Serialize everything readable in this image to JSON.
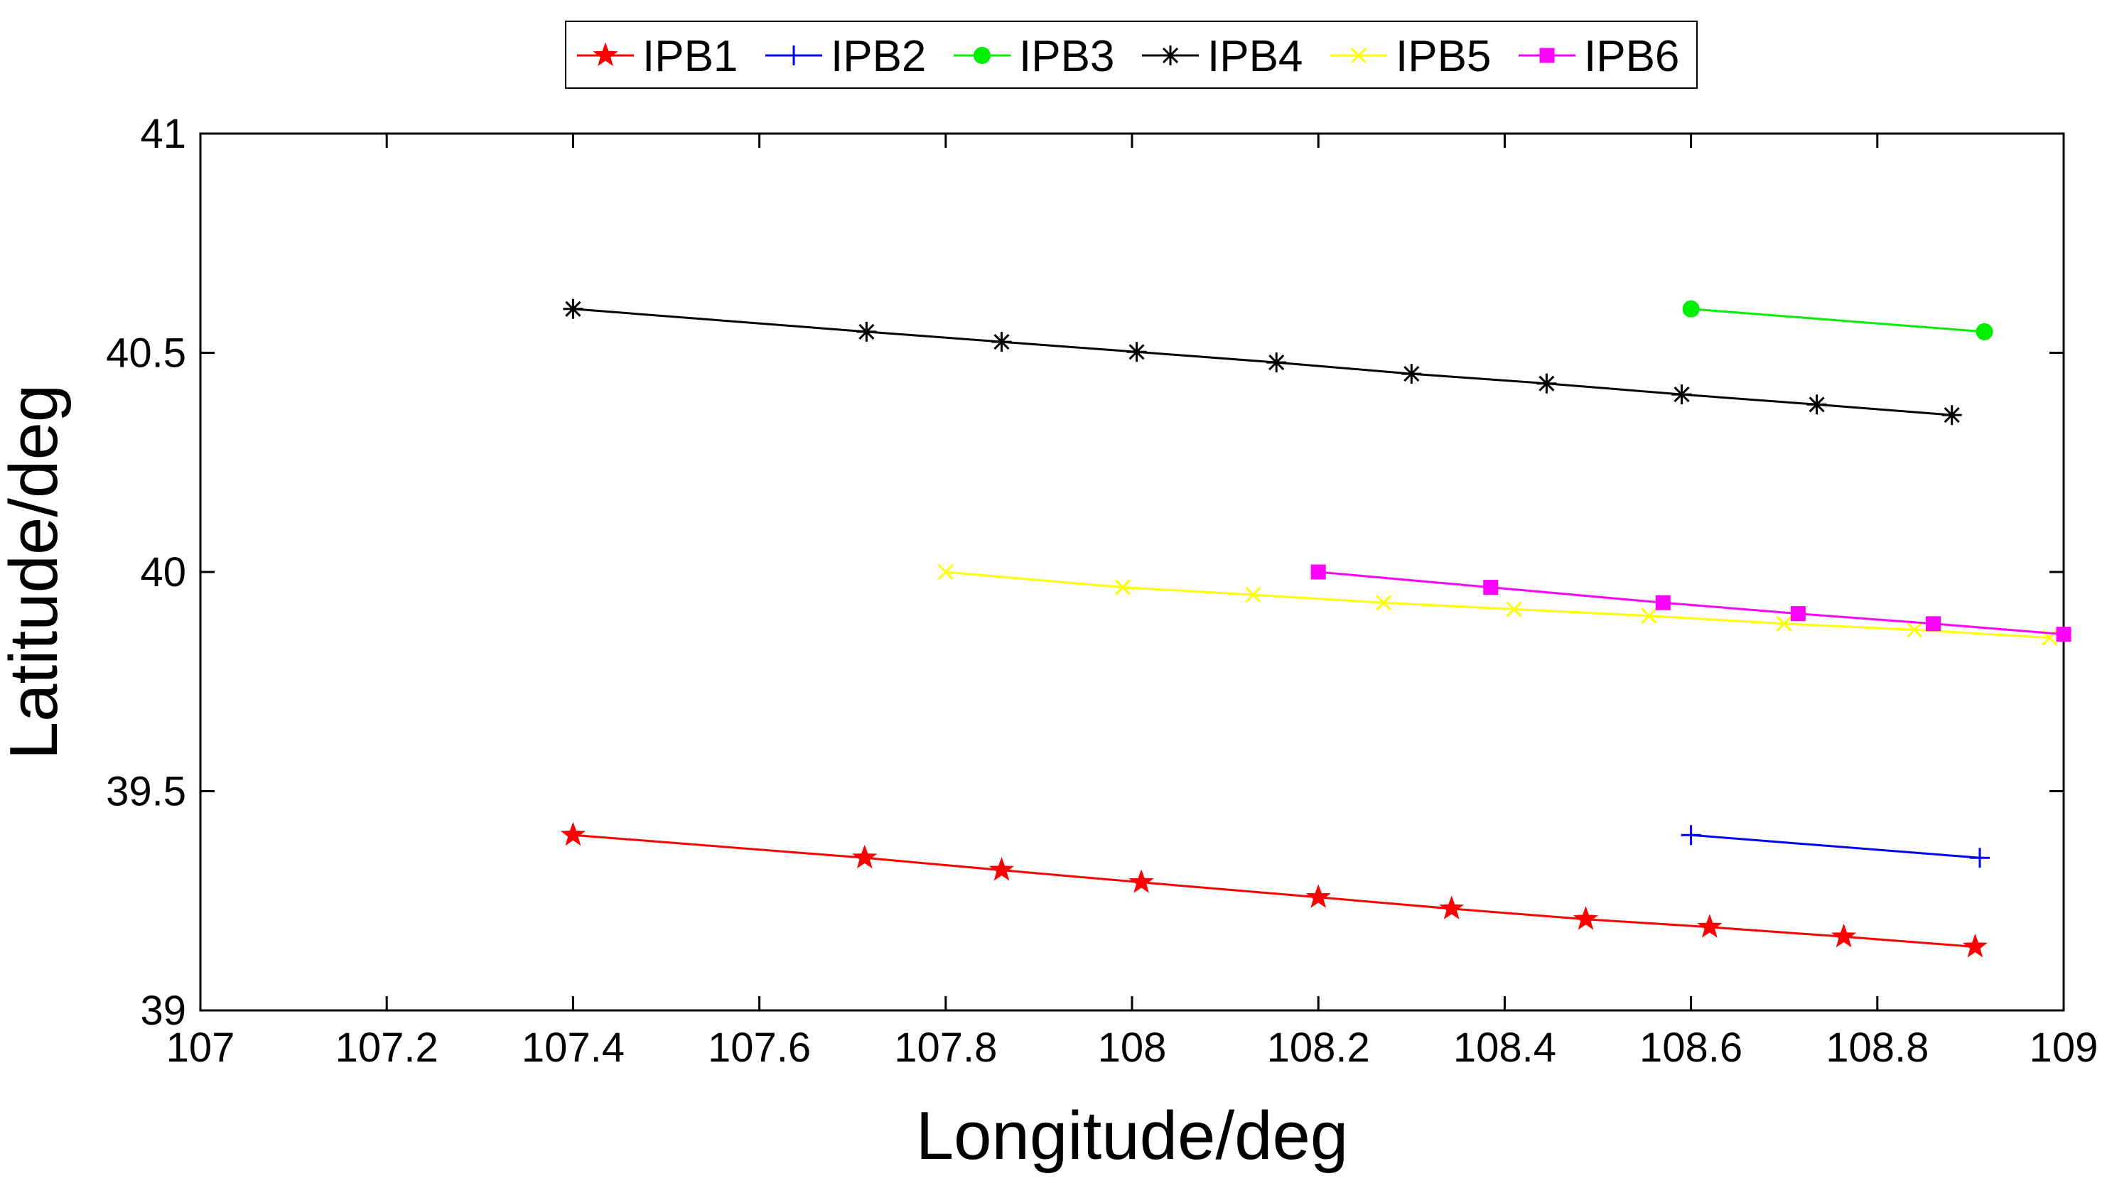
{
  "chart_data": {
    "type": "line",
    "title": "",
    "xlabel": "Longitude/deg",
    "ylabel": "Latitude/deg",
    "xlim": [
      107,
      109
    ],
    "ylim": [
      39,
      41
    ],
    "xticks": [
      107,
      107.2,
      107.4,
      107.6,
      107.8,
      108,
      108.2,
      108.4,
      108.6,
      108.8,
      109
    ],
    "yticks": [
      39,
      39.5,
      40,
      40.5,
      41
    ],
    "grid": false,
    "legend_position": "top-center",
    "series": [
      {
        "name": "IPB1",
        "color": "#ff0000",
        "marker": "star",
        "x": [
          107.4,
          107.713,
          107.86,
          108.01,
          108.2,
          108.343,
          108.487,
          108.62,
          108.764,
          108.905
        ],
        "y": [
          39.4,
          39.348,
          39.32,
          39.292,
          39.258,
          39.232,
          39.208,
          39.19,
          39.168,
          39.145
        ]
      },
      {
        "name": "IPB2",
        "color": "#0000ff",
        "marker": "plus",
        "x": [
          108.6,
          108.91
        ],
        "y": [
          39.4,
          39.348
        ]
      },
      {
        "name": "IPB3",
        "color": "#00ee00",
        "marker": "circle",
        "x": [
          108.6,
          108.915
        ],
        "y": [
          40.6,
          40.548
        ]
      },
      {
        "name": "IPB4",
        "color": "#000000",
        "marker": "asterisk",
        "x": [
          107.4,
          107.715,
          107.86,
          108.005,
          108.155,
          108.3,
          108.445,
          108.59,
          108.735,
          108.88
        ],
        "y": [
          40.6,
          40.548,
          40.525,
          40.502,
          40.478,
          40.452,
          40.43,
          40.405,
          40.382,
          40.358
        ]
      },
      {
        "name": "IPB5",
        "color": "#ffff00",
        "marker": "x",
        "x": [
          107.8,
          107.99,
          108.13,
          108.27,
          108.41,
          108.555,
          108.7,
          108.84,
          108.985
        ],
        "y": [
          40.0,
          39.965,
          39.948,
          39.93,
          39.915,
          39.9,
          39.882,
          39.868,
          39.85
        ]
      },
      {
        "name": "IPB6",
        "color": "#ff00ff",
        "marker": "square",
        "x": [
          108.2,
          108.385,
          108.57,
          108.715,
          108.86,
          109.0
        ],
        "y": [
          40.0,
          39.965,
          39.93,
          39.905,
          39.882,
          39.858
        ]
      }
    ]
  }
}
